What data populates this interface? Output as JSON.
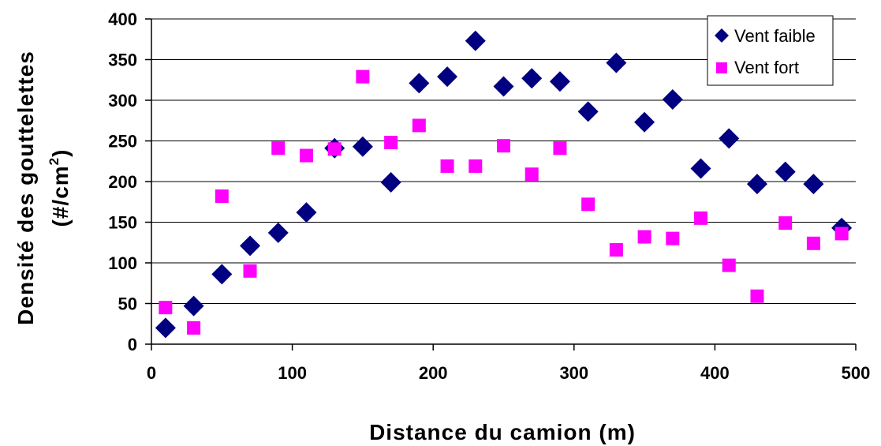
{
  "chart_data": {
    "type": "scatter",
    "xlabel": "Distance du camion (m)",
    "ylabel_line1": "Densité des gouttelettes",
    "ylabel_line2": "(#/cm",
    "ylabel_sup": "2",
    "ylabel_close": ")",
    "xlim": [
      0,
      500
    ],
    "ylim": [
      0,
      400
    ],
    "xticks": [
      0,
      100,
      200,
      300,
      400,
      500
    ],
    "yticks": [
      0,
      50,
      100,
      150,
      200,
      250,
      300,
      350,
      400
    ],
    "grid": "horizontal",
    "legend_position": "top-right",
    "series": [
      {
        "name": "Vent faible",
        "marker": "diamond",
        "color": "#000080",
        "x": [
          10,
          30,
          50,
          70,
          90,
          110,
          130,
          150,
          170,
          190,
          210,
          230,
          250,
          270,
          290,
          310,
          330,
          350,
          370,
          390,
          410,
          430,
          450,
          470,
          490
        ],
        "y": [
          20,
          47,
          86,
          121,
          137,
          162,
          241,
          243,
          199,
          321,
          329,
          373,
          317,
          327,
          323,
          286,
          346,
          273,
          301,
          216,
          253,
          197,
          212,
          197,
          143
        ]
      },
      {
        "name": "Vent fort",
        "marker": "square",
        "color": "#FF00FF",
        "x": [
          10,
          30,
          50,
          70,
          90,
          110,
          130,
          150,
          170,
          190,
          210,
          230,
          250,
          270,
          290,
          310,
          330,
          350,
          370,
          390,
          410,
          430,
          450,
          470,
          490
        ],
        "y": [
          45,
          20,
          182,
          90,
          241,
          232,
          240,
          329,
          248,
          269,
          219,
          219,
          244,
          209,
          241,
          172,
          116,
          132,
          130,
          155,
          97,
          59,
          149,
          124,
          136
        ]
      }
    ]
  }
}
